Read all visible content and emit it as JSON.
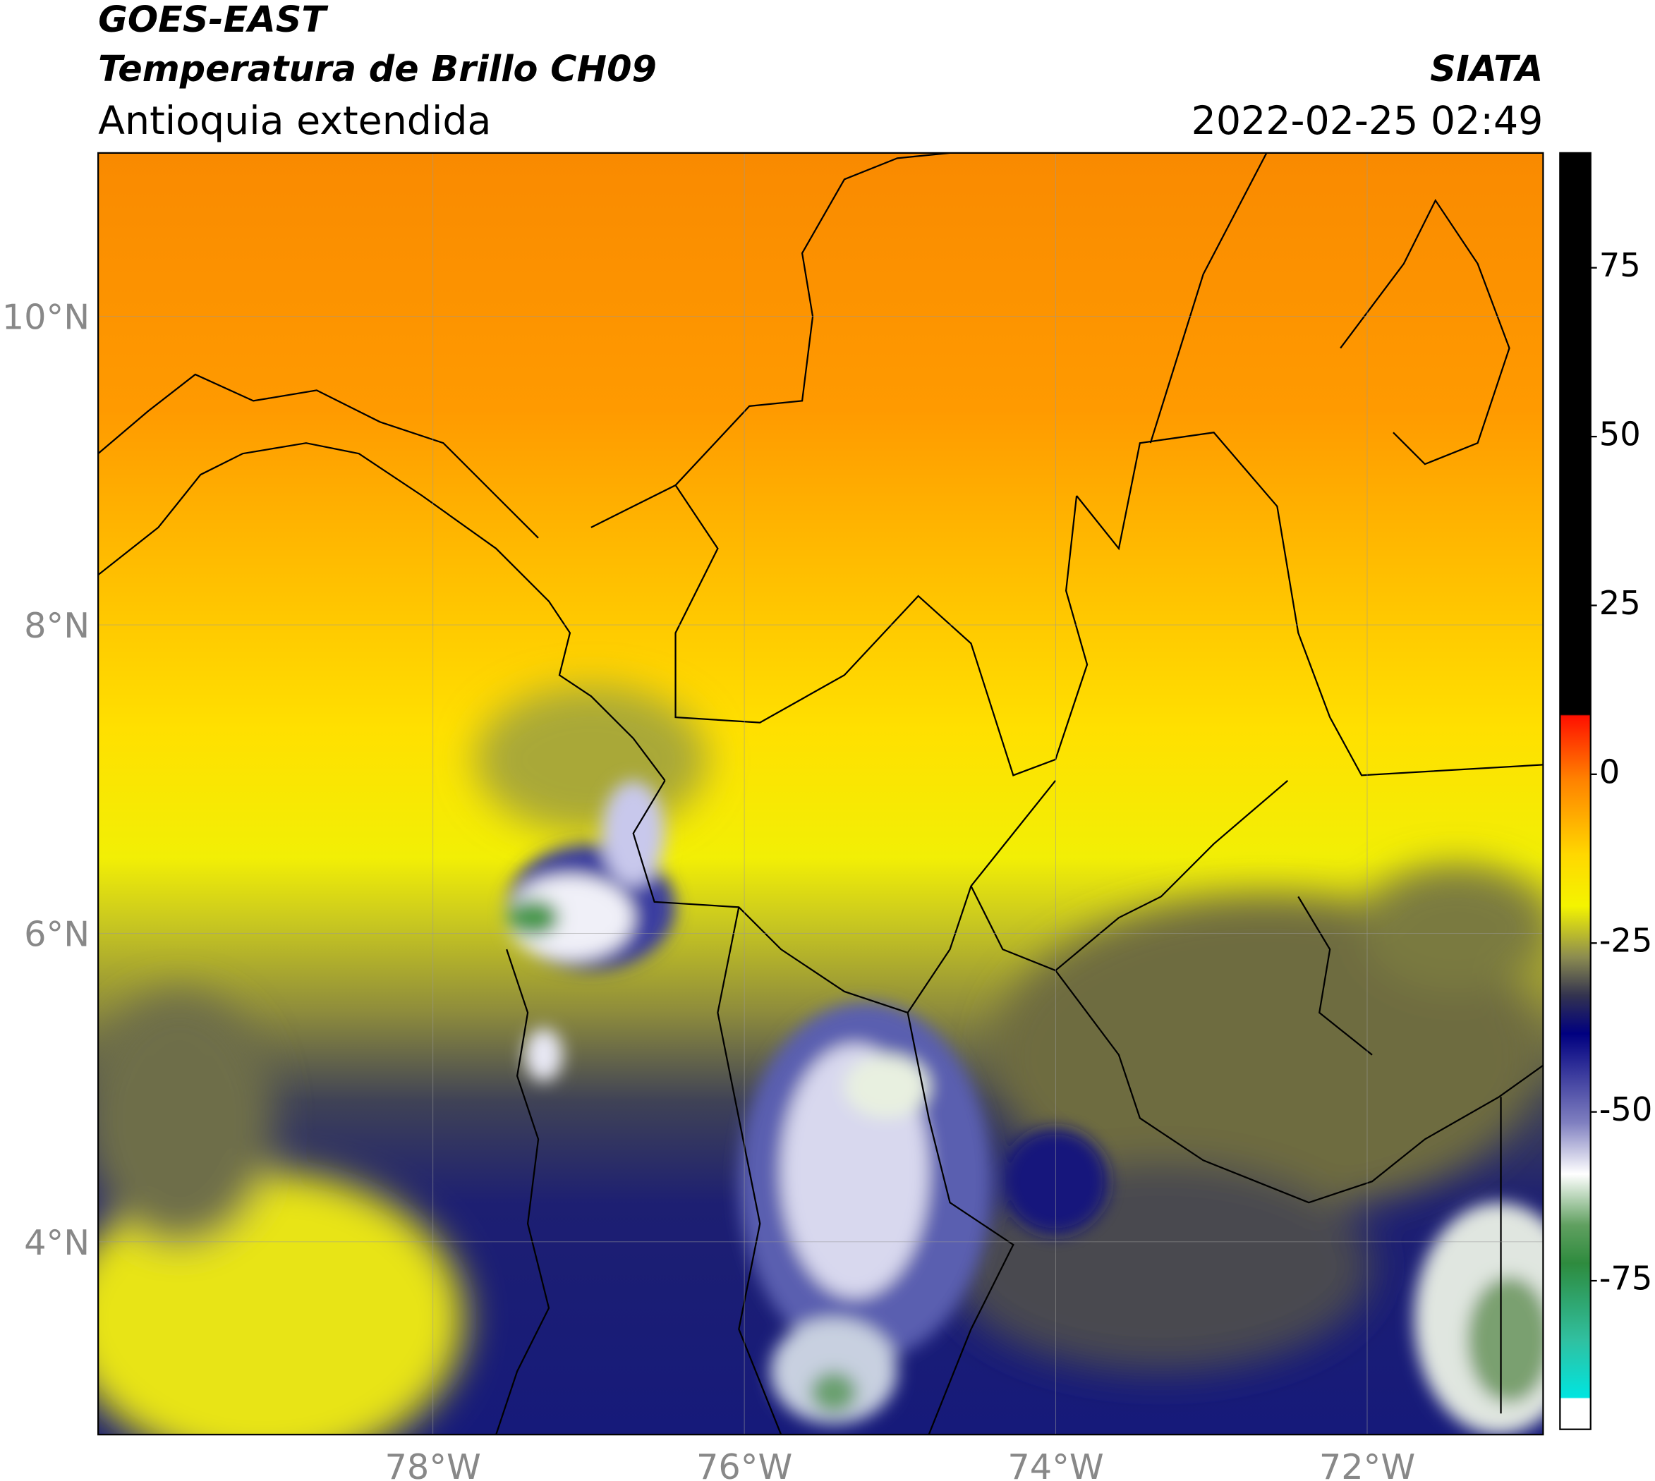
{
  "header": {
    "title": "GOES-EAST",
    "subtitle": "Temperatura de Brillo CH09",
    "region": "Antioquia extendida",
    "source": "SIATA",
    "timestamp": "2022-02-25 02:49"
  },
  "map": {
    "xlim": [
      -80.15,
      -70.87
    ],
    "ylim": [
      2.75,
      11.06
    ],
    "xticks": [
      {
        "value": -78,
        "label": "78°W"
      },
      {
        "value": -76,
        "label": "76°W"
      },
      {
        "value": -74,
        "label": "74°W"
      },
      {
        "value": -72,
        "label": "72°W"
      }
    ],
    "yticks": [
      {
        "value": 4,
        "label": "4°N"
      },
      {
        "value": 6,
        "label": "6°N"
      },
      {
        "value": 8,
        "label": "8°N"
      },
      {
        "value": 10,
        "label": "10°N"
      }
    ],
    "grid": true
  },
  "colorbar": {
    "lim": [
      -97,
      92
    ],
    "ticks": [
      75,
      50,
      25,
      0,
      -25,
      -50,
      -75
    ]
  }
}
